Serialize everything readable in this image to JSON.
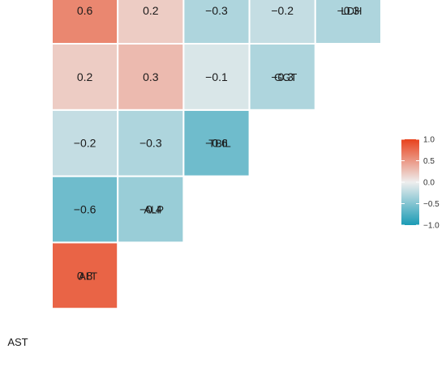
{
  "chart_data": {
    "type": "heatmap",
    "variables": [
      "AST",
      "ALT",
      "ALP",
      "TBIL",
      "GGT",
      "LDH"
    ],
    "cells": [
      {
        "row": "ALT",
        "col": "AST",
        "value": 0.8,
        "label": "0.8"
      },
      {
        "row": "ALP",
        "col": "AST",
        "value": -0.6,
        "label": "−0.6"
      },
      {
        "row": "ALP",
        "col": "ALT",
        "value": -0.4,
        "label": "−0.4"
      },
      {
        "row": "TBIL",
        "col": "AST",
        "value": -0.2,
        "label": "−0.2"
      },
      {
        "row": "TBIL",
        "col": "ALT",
        "value": -0.3,
        "label": "−0.3"
      },
      {
        "row": "TBIL",
        "col": "ALP",
        "value": -0.6,
        "label": "−0.6"
      },
      {
        "row": "GGT",
        "col": "AST",
        "value": 0.2,
        "label": "0.2"
      },
      {
        "row": "GGT",
        "col": "ALT",
        "value": 0.3,
        "label": "0.3"
      },
      {
        "row": "GGT",
        "col": "ALP",
        "value": -0.1,
        "label": "−0.1"
      },
      {
        "row": "GGT",
        "col": "TBIL",
        "value": -0.3,
        "label": "−0.3"
      },
      {
        "row": "LDH",
        "col": "AST",
        "value": 0.6,
        "label": "0.6"
      },
      {
        "row": "LDH",
        "col": "ALT",
        "value": 0.2,
        "label": "0.2"
      },
      {
        "row": "LDH",
        "col": "ALP",
        "value": -0.3,
        "label": "−0.3"
      },
      {
        "row": "LDH",
        "col": "TBIL",
        "value": -0.2,
        "label": "−0.2"
      },
      {
        "row": "LDH",
        "col": "GGT",
        "value": -0.3,
        "label": "−0.3"
      }
    ],
    "color_scale": {
      "range": [
        -1.0,
        1.0
      ],
      "low": "#1a9bb5",
      "mid": "#eeeeee",
      "high": "#e8421c"
    },
    "legend": {
      "position": "right",
      "ticks": [
        {
          "value": 1.0,
          "label": "1.0"
        },
        {
          "value": 0.5,
          "label": "0.5"
        },
        {
          "value": 0.0,
          "label": "0.0"
        },
        {
          "value": -0.5,
          "label": "−0.5"
        },
        {
          "value": -1.0,
          "label": "−1.0"
        }
      ]
    }
  }
}
